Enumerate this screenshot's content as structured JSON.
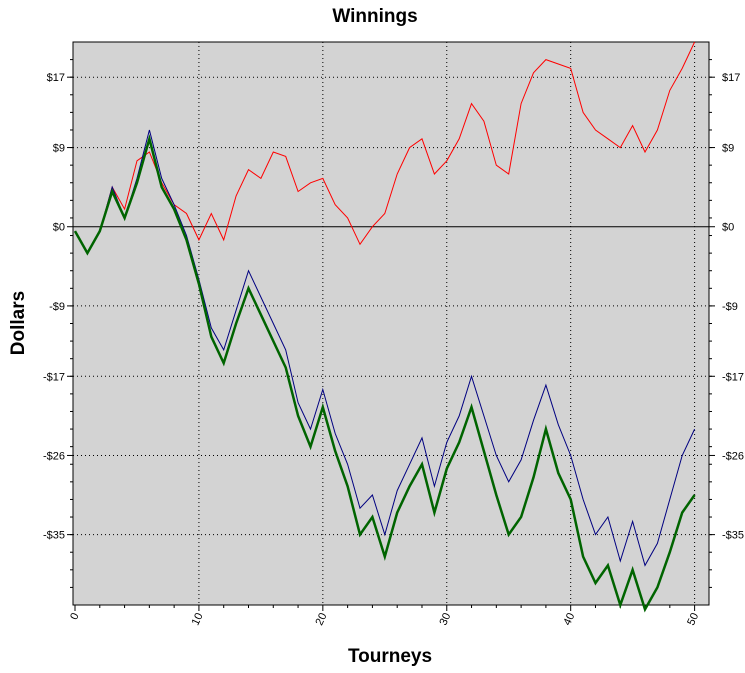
{
  "chart_data": {
    "type": "line",
    "title": "Winnings",
    "xlabel": "Tourneys",
    "ylabel": "Dollars",
    "xlim": [
      0,
      51
    ],
    "ylim": [
      -43,
      21
    ],
    "x_ticks": [
      0,
      10,
      20,
      30,
      40,
      50
    ],
    "y_ticks": [
      17,
      9,
      0,
      -9,
      -17,
      -26,
      -35
    ],
    "y_tick_labels": [
      "$17",
      "$9",
      "$0",
      "-$9",
      "-$17",
      "-$26",
      "-$35"
    ],
    "grid": true,
    "background": "#d3d3d3",
    "x": [
      0,
      1,
      2,
      3,
      4,
      5,
      6,
      7,
      8,
      9,
      10,
      11,
      12,
      13,
      14,
      15,
      16,
      17,
      18,
      19,
      20,
      21,
      22,
      23,
      24,
      25,
      26,
      27,
      28,
      29,
      30,
      31,
      32,
      33,
      34,
      35,
      36,
      37,
      38,
      39,
      40,
      41,
      42,
      43,
      44,
      45,
      46,
      47,
      48,
      49,
      50
    ],
    "series": [
      {
        "color": "#ff0000",
        "width": 1,
        "values": [
          -0.5,
          -3,
          -0.5,
          4.5,
          2,
          7.5,
          8.5,
          5,
          2.5,
          1.5,
          -1.5,
          1.5,
          -1.5,
          3.5,
          6.5,
          5.5,
          8.5,
          8,
          4,
          5,
          5.5,
          2.5,
          1,
          -2,
          0,
          1.5,
          6,
          9,
          10,
          6,
          7.5,
          10,
          14,
          12,
          7,
          6,
          14,
          17.5,
          19,
          18.5,
          18,
          13,
          11,
          10,
          9,
          11.5,
          8.5,
          11,
          15.5,
          18,
          21
        ]
      },
      {
        "color": "#000080",
        "width": 1,
        "values": [
          -0.5,
          -3,
          -0.5,
          4.5,
          1,
          5.5,
          11,
          5.5,
          2.5,
          -1,
          -6,
          -11.5,
          -14,
          -9.5,
          -5,
          -8,
          -11,
          -14,
          -20,
          -23,
          -18.5,
          -23.5,
          -27,
          -32,
          -30.5,
          -35,
          -30,
          -27,
          -24,
          -29.5,
          -24.5,
          -21.5,
          -17,
          -21.5,
          -26,
          -29,
          -26.5,
          -22,
          -18,
          -22.5,
          -26,
          -31,
          -35,
          -33,
          -38,
          -33.5,
          -38.5,
          -36,
          -31,
          -26,
          -23
        ]
      },
      {
        "color": "#006400",
        "width": 2.5,
        "values": [
          -0.5,
          -3,
          -0.5,
          4,
          1,
          5,
          10,
          4.5,
          2,
          -1.5,
          -6.5,
          -12.5,
          -15.5,
          -11,
          -7,
          -10,
          -13,
          -16,
          -21.5,
          -25,
          -20.5,
          -25.5,
          -29.5,
          -35,
          -33,
          -37.5,
          -32.5,
          -29.5,
          -27,
          -32.5,
          -27.5,
          -24.5,
          -20.5,
          -25.5,
          -30.5,
          -35,
          -33,
          -28.5,
          -23,
          -28,
          -31,
          -37.5,
          -40.5,
          -38.5,
          -43,
          -39,
          -43.5,
          -41,
          -37,
          -32.5,
          -30.5
        ]
      }
    ]
  }
}
